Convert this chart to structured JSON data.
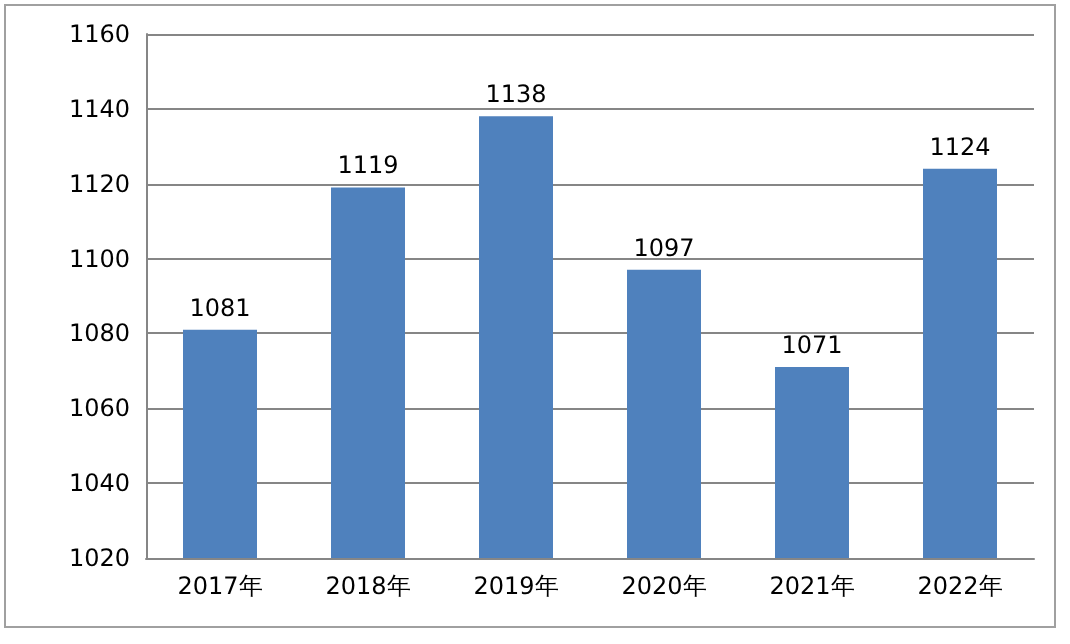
{
  "chart_data": {
    "type": "bar",
    "categories": [
      "2017年",
      "2018年",
      "2019年",
      "2020年",
      "2021年",
      "2022年"
    ],
    "values": [
      1081,
      1119,
      1138,
      1097,
      1071,
      1124
    ],
    "color": "#4f81bd",
    "ylim": [
      1020,
      1160
    ],
    "yticks": [
      1020,
      1040,
      1060,
      1080,
      1100,
      1120,
      1140,
      1160
    ],
    "grid": "y",
    "data_labels": true
  }
}
